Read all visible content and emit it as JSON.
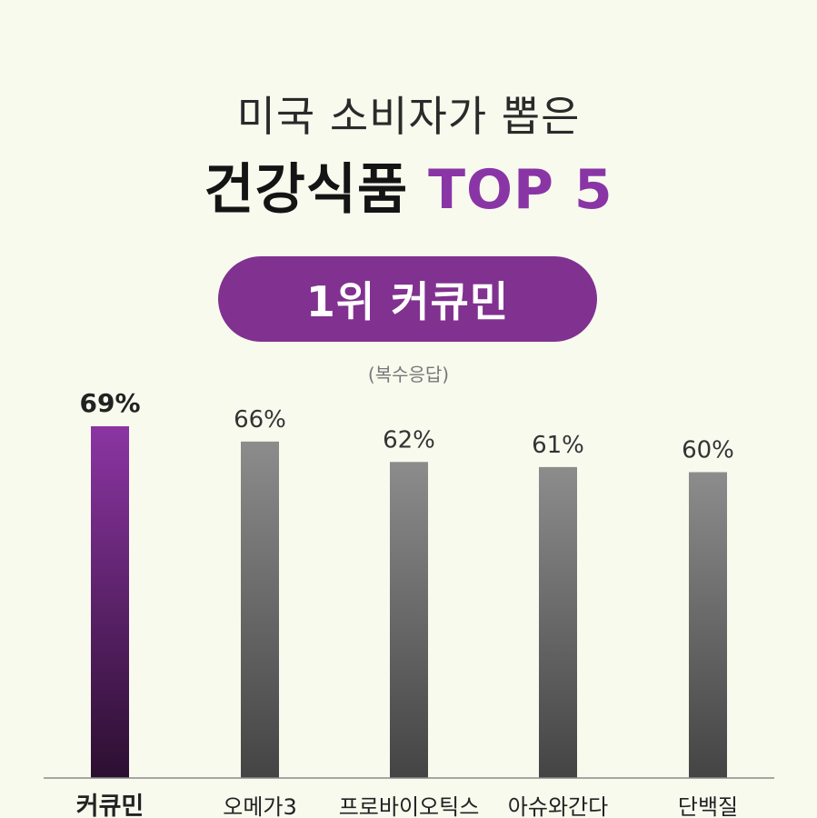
{
  "header": {
    "subtitle": "미국 소비자가 뽑은",
    "title_main": "건강식품",
    "title_accent": "TOP 5"
  },
  "badge": {
    "label": "1위 커큐민"
  },
  "note": "(복수응답)",
  "colors": {
    "accent": "#8a35a6",
    "pill": "#81318f",
    "bar_highlight_top": "#8b35a3",
    "bar_highlight_bottom": "#2c0f30",
    "bar_gray_top": "#8c8c8c",
    "bar_gray_bottom": "#444444",
    "background": "#f8faee"
  },
  "chart_data": {
    "type": "bar",
    "categories": [
      "커큐민",
      "오메가3",
      "프로바이오틱스",
      "아슈와간다",
      "단백질"
    ],
    "values": [
      69,
      66,
      62,
      61,
      60
    ],
    "value_labels": [
      "69%",
      "66%",
      "62%",
      "61%",
      "60%"
    ],
    "highlight_index": 0,
    "ylim": [
      0,
      69
    ],
    "grid": false,
    "legend": "none"
  }
}
